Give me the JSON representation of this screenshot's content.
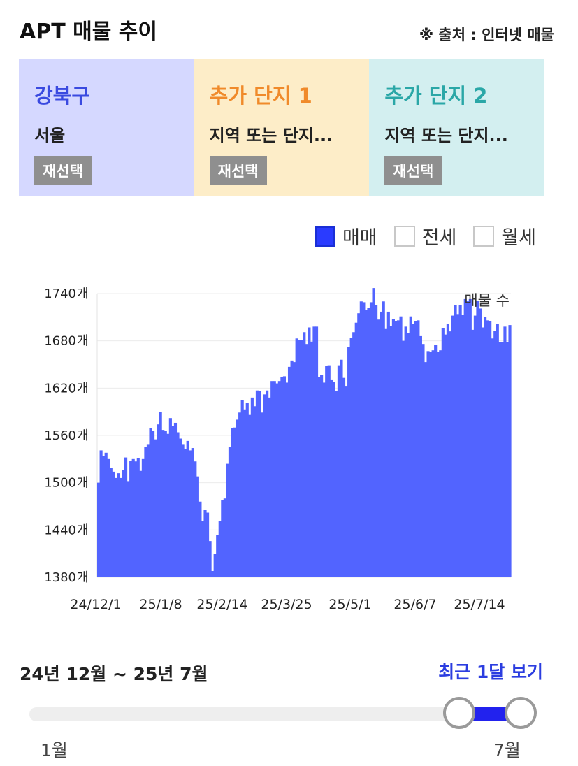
{
  "header": {
    "title": "APT 매물 추이",
    "source": "※ 출처 : 인터넷 매물"
  },
  "cards": [
    {
      "name": "강북구",
      "sub": "서울",
      "button": "재선택",
      "bg": "#d5d8ff",
      "color": "#3a4ae0"
    },
    {
      "name": "추가 단지 1",
      "sub": "지역 또는 단지...",
      "button": "재선택",
      "bg": "#fdedc8",
      "color": "#f08a2a"
    },
    {
      "name": "추가 단지 2",
      "sub": "지역 또는 단지...",
      "button": "재선택",
      "bg": "#d3eff0",
      "color": "#2aa7a7"
    }
  ],
  "legend": [
    {
      "label": "매매",
      "checked": true
    },
    {
      "label": "전세",
      "checked": false
    },
    {
      "label": "월세",
      "checked": false
    }
  ],
  "chart_data": {
    "type": "bar",
    "ylabel": "매물 수",
    "y_unit": "개",
    "ylim": [
      1380,
      1740
    ],
    "yticks": [
      "1740개",
      "1680개",
      "1620개",
      "1560개",
      "1500개",
      "1440개",
      "1380개"
    ],
    "x_ticks": [
      "24/12/1",
      "25/1/8",
      "25/2/14",
      "25/3/25",
      "25/5/1",
      "25/6/7",
      "25/7/14"
    ],
    "x_start": "24/12/1",
    "x_end": "25/7/31",
    "series": [
      {
        "values": [
          1500,
          1541,
          1534,
          1538,
          1530,
          1519,
          1514,
          1506,
          1512,
          1506,
          1516,
          1532,
          1502,
          1528,
          1530,
          1527,
          1531,
          1515,
          1530,
          1545,
          1549,
          1569,
          1566,
          1555,
          1574,
          1590,
          1567,
          1566,
          1562,
          1582,
          1572,
          1576,
          1564,
          1556,
          1549,
          1543,
          1553,
          1541,
          1544,
          1527,
          1508,
          1476,
          1451,
          1466,
          1462,
          1426,
          1388,
          1410,
          1434,
          1451,
          1478,
          1480,
          1524,
          1545,
          1569,
          1570,
          1580,
          1589,
          1605,
          1593,
          1601,
          1586,
          1608,
          1597,
          1617,
          1616,
          1589,
          1612,
          1617,
          1608,
          1629,
          1629,
          1626,
          1629,
          1634,
          1635,
          1627,
          1647,
          1655,
          1653,
          1683,
          1681,
          1681,
          1691,
          1676,
          1697,
          1679,
          1698,
          1698,
          1634,
          1637,
          1627,
          1648,
          1649,
          1631,
          1628,
          1616,
          1649,
          1656,
          1633,
          1622,
          1672,
          1684,
          1691,
          1703,
          1715,
          1730,
          1729,
          1719,
          1722,
          1729,
          1747,
          1725,
          1707,
          1717,
          1730,
          1695,
          1717,
          1699,
          1708,
          1705,
          1706,
          1711,
          1680,
          1698,
          1690,
          1711,
          1701,
          1705,
          1706,
          1686,
          1676,
          1653,
          1667,
          1666,
          1668,
          1675,
          1666,
          1668,
          1696,
          1688,
          1701,
          1692,
          1712,
          1725,
          1714,
          1725,
          1713,
          1733,
          1731,
          1733,
          1694,
          1712,
          1731,
          1721,
          1697,
          1710,
          1706,
          1705,
          1683,
          1693,
          1701,
          1678,
          1678,
          1698,
          1678,
          1700
        ]
      }
    ]
  },
  "range": {
    "label": "24년 12월 ~ 25년 7월",
    "recent": "최근 1달 보기",
    "min_label": "1월",
    "max_label": "7월"
  }
}
